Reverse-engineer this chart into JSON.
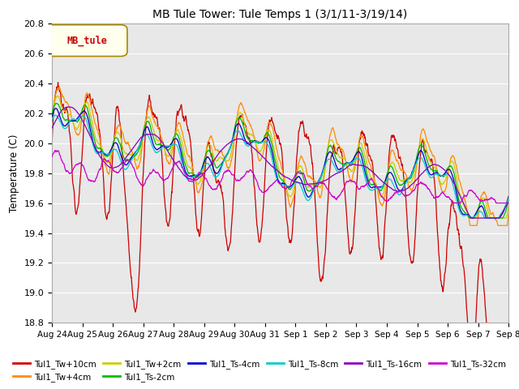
{
  "title": "MB Tule Tower: Tule Temps 1 (3/1/11-3/19/14)",
  "ylabel": "Temperature (C)",
  "legend_box_label": "MB_tule",
  "ylim": [
    18.8,
    20.8
  ],
  "yticks": [
    18.8,
    19.0,
    19.2,
    19.4,
    19.6,
    19.8,
    20.0,
    20.2,
    20.4,
    20.6,
    20.8
  ],
  "series_labels": [
    "Tul1_Tw+10cm",
    "Tul1_Tw+4cm",
    "Tul1_Tw+2cm",
    "Tul1_Ts-2cm",
    "Tul1_Ts-4cm",
    "Tul1_Ts-8cm",
    "Tul1_Ts-16cm",
    "Tul1_Ts-32cm"
  ],
  "series_colors": [
    "#cc0000",
    "#ff8c00",
    "#cccc00",
    "#00bb00",
    "#0000cc",
    "#00cccc",
    "#8800bb",
    "#cc00cc"
  ],
  "background_color": "#ffffff",
  "plot_bg_color": "#e8e8e8",
  "grid_color": "#ffffff",
  "n_points": 1500,
  "x_start": 0,
  "x_end": 15,
  "x_tick_labels": [
    "Aug 24",
    "Aug 25",
    "Aug 26",
    "Aug 27",
    "Aug 28",
    "Aug 29",
    "Aug 30",
    "Aug 31",
    "Sep 1",
    "Sep 2",
    "Sep 3",
    "Sep 4",
    "Sep 5",
    "Sep 6",
    "Sep 7",
    "Sep 8"
  ],
  "x_tick_positions": [
    0,
    1,
    2,
    3,
    4,
    5,
    6,
    7,
    8,
    9,
    10,
    11,
    12,
    13,
    14,
    15
  ]
}
